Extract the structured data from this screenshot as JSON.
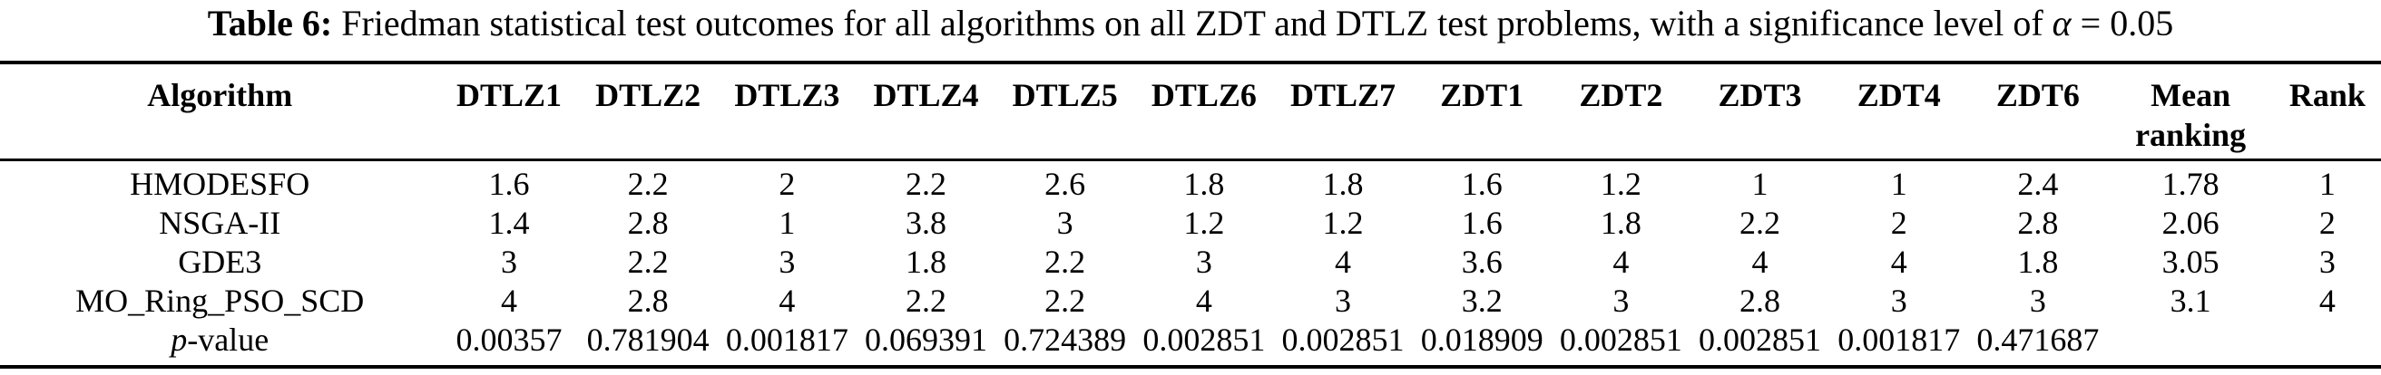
{
  "caption": {
    "label": "Table 6:",
    "text": " Friedman statistical test outcomes for all algorithms on all ZDT and DTLZ test problems, with a significance level of ",
    "alpha": "α",
    "alpha_value": " = 0.05"
  },
  "table": {
    "columns": [
      "Algorithm",
      "DTLZ1",
      "DTLZ2",
      "DTLZ3",
      "DTLZ4",
      "DTLZ5",
      "DTLZ6",
      "DTLZ7",
      "ZDT1",
      "ZDT2",
      "ZDT3",
      "ZDT4",
      "ZDT6",
      "Mean ranking",
      "Rank"
    ],
    "rows": [
      {
        "label_parts": [
          {
            "text": "HMODESFO",
            "italic": false
          }
        ],
        "values": [
          "1.6",
          "2.2",
          "2",
          "2.2",
          "2.6",
          "1.8",
          "1.8",
          "1.6",
          "1.2",
          "1",
          "1",
          "2.4",
          "1.78",
          "1"
        ]
      },
      {
        "label_parts": [
          {
            "text": "NSGA-II",
            "italic": false
          }
        ],
        "values": [
          "1.4",
          "2.8",
          "1",
          "3.8",
          "3",
          "1.2",
          "1.2",
          "1.6",
          "1.8",
          "2.2",
          "2",
          "2.8",
          "2.06",
          "2"
        ]
      },
      {
        "label_parts": [
          {
            "text": "GDE3",
            "italic": false
          }
        ],
        "values": [
          "3",
          "2.2",
          "3",
          "1.8",
          "2.2",
          "3",
          "4",
          "3.6",
          "4",
          "4",
          "4",
          "1.8",
          "3.05",
          "3"
        ]
      },
      {
        "label_parts": [
          {
            "text": "MO_Ring_PSO_SCD",
            "italic": false
          }
        ],
        "values": [
          "4",
          "2.8",
          "4",
          "2.2",
          "2.2",
          "4",
          "3",
          "3.2",
          "3",
          "2.8",
          "3",
          "3",
          "3.1",
          "4"
        ]
      },
      {
        "label_parts": [
          {
            "text": "p",
            "italic": true
          },
          {
            "text": "-value",
            "italic": false
          }
        ],
        "values": [
          "0.00357",
          "0.781904",
          "0.001817",
          "0.069391",
          "0.724389",
          "0.002851",
          "0.002851",
          "0.018909",
          "0.002851",
          "0.002851",
          "0.001817",
          "0.471687",
          "",
          ""
        ]
      }
    ]
  }
}
